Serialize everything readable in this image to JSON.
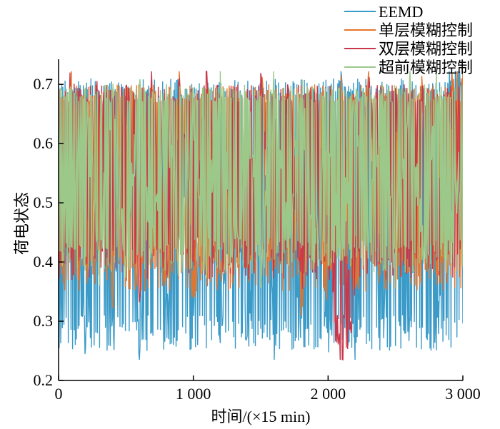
{
  "chart_data": {
    "type": "line",
    "title": "",
    "xlabel": "时间/(×15 min)",
    "ylabel": "荷电状态",
    "xlim": [
      0,
      3000
    ],
    "ylim": [
      0.2,
      0.74
    ],
    "x_ticks": [
      0,
      1000,
      2000,
      3000
    ],
    "x_tick_labels": [
      "0",
      "1 000",
      "2 000",
      "3 000"
    ],
    "y_ticks": [
      0.2,
      0.3,
      0.4,
      0.5,
      0.6,
      0.7
    ],
    "y_tick_labels": [
      "0.2",
      "0.3",
      "0.4",
      "0.5",
      "0.6",
      "0.7"
    ],
    "grid": false,
    "legend_position": "top-right",
    "series": [
      {
        "name": "EEMD",
        "color": "#3a9ac8",
        "description_low": 0.25,
        "description_high": 0.71,
        "x": [
          0,
          100,
          200,
          300,
          400,
          500,
          600,
          700,
          800,
          900,
          1000,
          1100,
          1200,
          1300,
          1400,
          1500,
          1600,
          1700,
          1800,
          1900,
          2000,
          2100,
          2200,
          2300,
          2400,
          2500,
          2600,
          2700,
          2800,
          2900,
          3000
        ],
        "values": [
          0.27,
          0.69,
          0.26,
          0.62,
          0.28,
          0.7,
          0.25,
          0.66,
          0.27,
          0.69,
          0.26,
          0.7,
          0.28,
          0.64,
          0.26,
          0.7,
          0.27,
          0.69,
          0.26,
          0.68,
          0.27,
          0.7,
          0.26,
          0.69,
          0.28,
          0.7,
          0.26,
          0.69,
          0.27,
          0.68,
          0.7
        ]
      },
      {
        "name": "单层模糊控制",
        "color": "#e8742a",
        "x": [
          0,
          100,
          200,
          300,
          400,
          500,
          600,
          700,
          800,
          900,
          1000,
          1100,
          1200,
          1300,
          1400,
          1500,
          1600,
          1700,
          1800,
          1900,
          2000,
          2100,
          2200,
          2300,
          2400,
          2500,
          2600,
          2700,
          2800,
          2900,
          3000
        ],
        "values": [
          0.38,
          0.69,
          0.36,
          0.68,
          0.37,
          0.7,
          0.36,
          0.68,
          0.37,
          0.69,
          0.36,
          0.7,
          0.36,
          0.68,
          0.36,
          0.69,
          0.37,
          0.7,
          0.35,
          0.69,
          0.36,
          0.7,
          0.36,
          0.69,
          0.37,
          0.7,
          0.35,
          0.69,
          0.35,
          0.68,
          0.7
        ]
      },
      {
        "name": "双层模糊控制",
        "color": "#c8384a",
        "x": [
          0,
          100,
          200,
          300,
          400,
          500,
          600,
          700,
          800,
          900,
          1000,
          1100,
          1200,
          1300,
          1400,
          1500,
          1600,
          1700,
          1800,
          1900,
          2000,
          2100,
          2200,
          2300,
          2400,
          2500,
          2600,
          2700,
          2800,
          2900,
          3000
        ],
        "values": [
          0.62,
          0.7,
          0.4,
          0.69,
          0.42,
          0.7,
          0.38,
          0.7,
          0.4,
          0.69,
          0.41,
          0.7,
          0.38,
          0.7,
          0.42,
          0.69,
          0.4,
          0.7,
          0.37,
          0.7,
          0.42,
          0.24,
          0.4,
          0.7,
          0.38,
          0.69,
          0.4,
          0.7,
          0.42,
          0.69,
          0.65
        ]
      },
      {
        "name": "超前模糊控制",
        "color": "#9cc98a",
        "x": [
          0,
          100,
          200,
          300,
          400,
          500,
          600,
          700,
          800,
          900,
          1000,
          1100,
          1200,
          1300,
          1400,
          1500,
          1600,
          1700,
          1800,
          1900,
          2000,
          2100,
          2200,
          2300,
          2400,
          2500,
          2600,
          2700,
          2800,
          2900,
          3000
        ],
        "values": [
          0.6,
          0.45,
          0.68,
          0.4,
          0.66,
          0.42,
          0.69,
          0.41,
          0.68,
          0.4,
          0.66,
          0.42,
          0.69,
          0.4,
          0.67,
          0.41,
          0.69,
          0.42,
          0.68,
          0.4,
          0.66,
          0.41,
          0.69,
          0.42,
          0.67,
          0.4,
          0.69,
          0.41,
          0.68,
          0.42,
          0.6
        ]
      }
    ]
  }
}
